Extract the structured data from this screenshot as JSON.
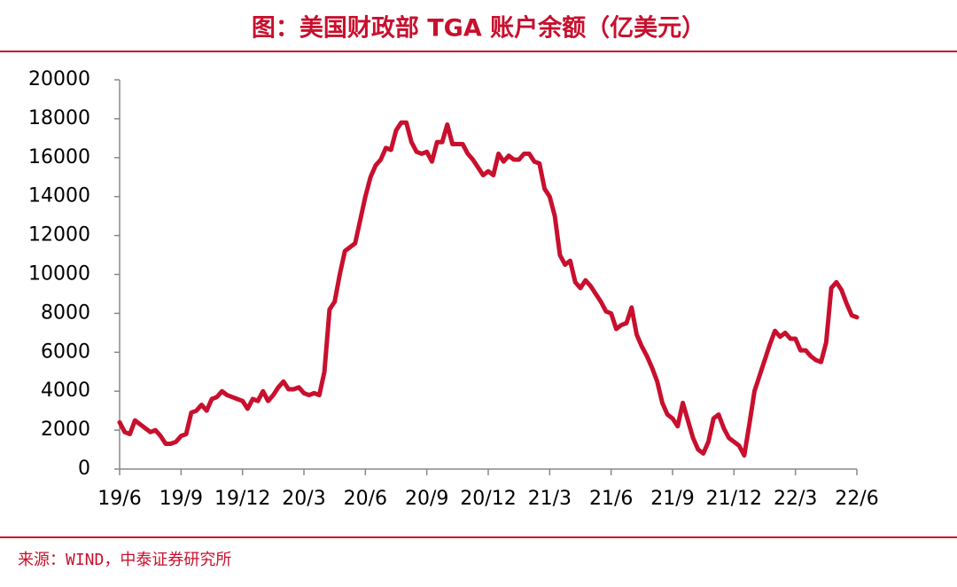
{
  "chart_data": {
    "type": "line",
    "title": "图：美国财政部 TGA 账户余额（亿美元）",
    "source": "来源：WIND，中泰证券研究所",
    "categories": [
      "19/6",
      null,
      null,
      null,
      null,
      null,
      null,
      null,
      null,
      null,
      null,
      null,
      "19/9",
      null,
      null,
      null,
      null,
      null,
      null,
      null,
      null,
      null,
      null,
      null,
      "19/12",
      null,
      null,
      null,
      null,
      null,
      null,
      null,
      null,
      null,
      null,
      null,
      "20/3",
      null,
      null,
      null,
      null,
      null,
      null,
      null,
      null,
      null,
      null,
      null,
      "20/6",
      null,
      null,
      null,
      null,
      null,
      null,
      null,
      null,
      null,
      null,
      null,
      "20/9",
      null,
      null,
      null,
      null,
      null,
      null,
      null,
      null,
      null,
      null,
      null,
      "20/12",
      null,
      null,
      null,
      null,
      null,
      null,
      null,
      null,
      null,
      null,
      null,
      "21/3",
      null,
      null,
      null,
      null,
      null,
      null,
      null,
      null,
      null,
      null,
      null,
      "21/6",
      null,
      null,
      null,
      null,
      null,
      null,
      null,
      null,
      null,
      null,
      null,
      "21/9",
      null,
      null,
      null,
      null,
      null,
      null,
      null,
      null,
      null,
      null,
      null,
      "21/12",
      null,
      null,
      null,
      null,
      null,
      null,
      null,
      null,
      null,
      null,
      null,
      "22/3",
      null,
      null,
      null,
      null,
      null,
      null,
      null,
      null,
      null,
      null,
      null,
      "22/6"
    ],
    "series": [
      {
        "color": "#c8102e",
        "values": [
          2400,
          1900,
          1800,
          2500,
          2300,
          2100,
          1900,
          2000,
          1700,
          1300,
          1300,
          1400,
          1700,
          1800,
          2900,
          3000,
          3300,
          3000,
          3600,
          3700,
          4000,
          3800,
          3700,
          3600,
          3500,
          3100,
          3600,
          3500,
          4000,
          3500,
          3800,
          4200,
          4500,
          4100,
          4100,
          4200,
          3900,
          3800,
          3900,
          3800,
          5000,
          8200,
          8600,
          10000,
          11200,
          11400,
          11600,
          12800,
          14000,
          15000,
          15600,
          15900,
          16500,
          16400,
          17400,
          17800,
          17800,
          16800,
          16300,
          16200,
          16300,
          15800,
          16800,
          16800,
          17700,
          16700,
          16700,
          16700,
          16200,
          15900,
          15500,
          15100,
          15300,
          15100,
          16200,
          15800,
          16100,
          15900,
          15900,
          16200,
          16200,
          15800,
          15700,
          14400,
          14000,
          13000,
          11000,
          10500,
          10700,
          9600,
          9300,
          9700,
          9400,
          9000,
          8600,
          8100,
          8000,
          7200,
          7400,
          7500,
          8300,
          6900,
          6300,
          5800,
          5200,
          4500,
          3400,
          2800,
          2600,
          2200,
          3400,
          2500,
          1600,
          1000,
          800,
          1400,
          2600,
          2800,
          2100,
          1600,
          1400,
          1200,
          700,
          2300,
          4000,
          4800,
          5600,
          6400,
          7100,
          6800,
          7000,
          6700,
          6700,
          6100,
          6100,
          5800,
          5600,
          5500,
          6500,
          9300,
          9600,
          9200,
          8500,
          7900,
          7800
        ]
      }
    ],
    "ylim": [
      0,
      20000
    ],
    "yticks": [
      0,
      2000,
      4000,
      6000,
      8000,
      10000,
      12000,
      14000,
      16000,
      18000,
      20000
    ]
  }
}
